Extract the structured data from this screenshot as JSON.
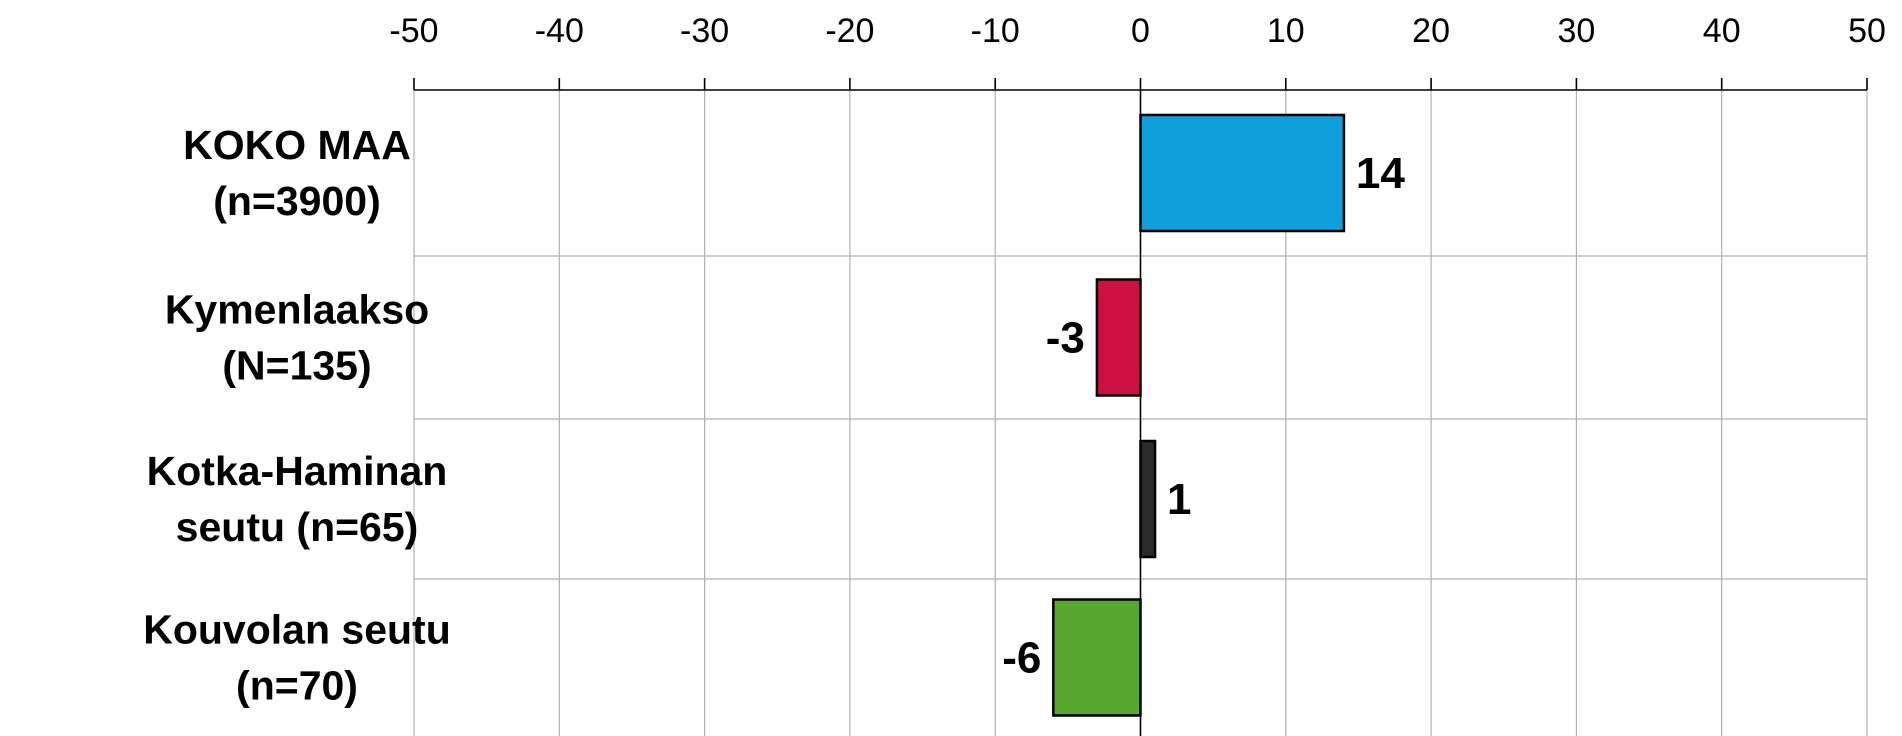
{
  "chart_data": {
    "type": "bar",
    "orientation": "horizontal",
    "xlim": [
      -50,
      50
    ],
    "xticks": [
      -50,
      -40,
      -30,
      -20,
      -10,
      0,
      10,
      20,
      30,
      40,
      50
    ],
    "x_axis_position": "top",
    "grid": true,
    "categories": [
      [
        "KOKO MAA",
        "(n=3900)"
      ],
      [
        "Kymenlaakso",
        "(N=135)"
      ],
      [
        "Kotka-Haminan",
        "seutu (n=65)"
      ],
      [
        "Kouvolan seutu",
        "(n=70)"
      ]
    ],
    "values": [
      14,
      -3,
      1,
      -6
    ],
    "bar_colors": [
      "#0fa0dc",
      "#cd1041",
      "#2b2b2b",
      "#58a82d"
    ],
    "data_labels": [
      "14",
      "-3",
      "1",
      "-6"
    ]
  }
}
